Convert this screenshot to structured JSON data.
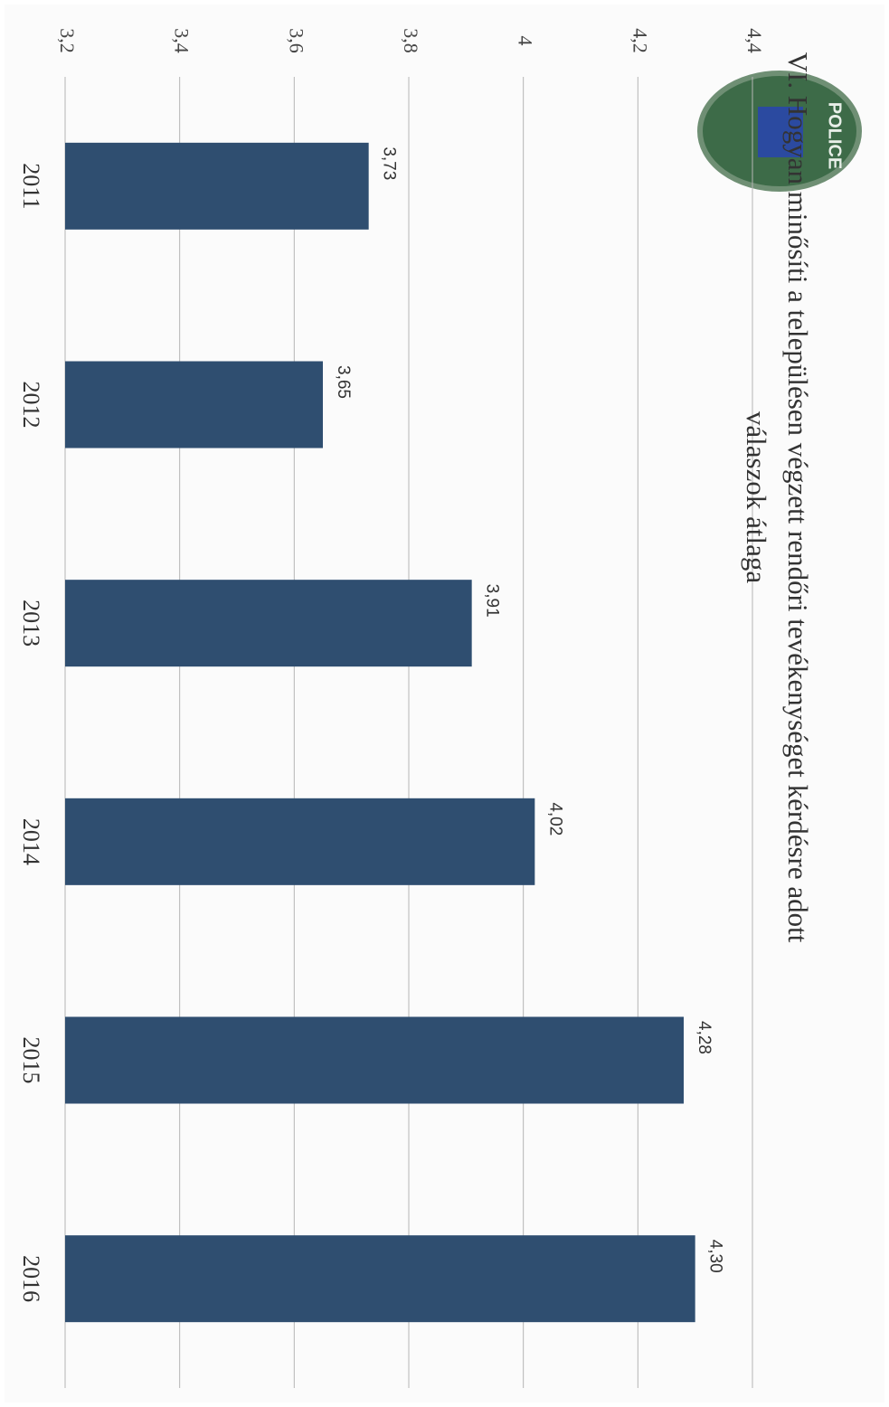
{
  "chart_data": {
    "type": "bar",
    "title": "VI. Hogyan minősíti a településen végzett rendőri tevékenységet kérdésre adott válaszok átlaga",
    "logo_text": "POLICE",
    "categories": [
      "2011",
      "2012",
      "2013",
      "2014",
      "2015",
      "2016"
    ],
    "values": [
      3.73,
      3.65,
      3.91,
      4.02,
      4.28,
      4.3
    ],
    "value_labels": [
      "3,73",
      "3,65",
      "3,91",
      "4,02",
      "4,28",
      "4,30"
    ],
    "color": "#2f4e70",
    "ylim": [
      3.2,
      4.4
    ],
    "yticks": [
      {
        "value": 3.2,
        "label": "3,2"
      },
      {
        "value": 3.4,
        "label": "3,4"
      },
      {
        "value": 3.6,
        "label": "3,6"
      },
      {
        "value": 3.8,
        "label": "3,8"
      },
      4,
      {
        "value": 4.2,
        "label": "4,2"
      },
      {
        "value": 4.4,
        "label": "4,4"
      }
    ],
    "grid": true
  }
}
